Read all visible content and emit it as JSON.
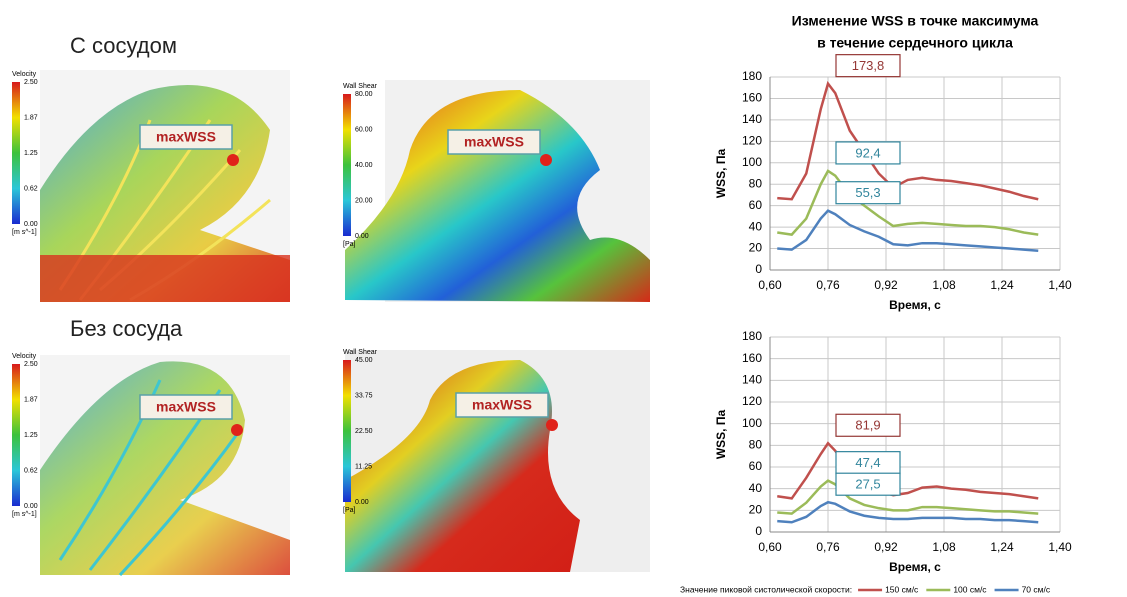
{
  "row_titles": [
    "С сосудом",
    "Без сосуда"
  ],
  "panels": [
    {
      "bar_title": "Velocity",
      "bar_ticks": [
        "2.50",
        "1.87",
        "1.25",
        "0.62",
        "0.00"
      ],
      "bar_unit": "[m s^-1]",
      "marker": "maxWSS"
    },
    {
      "bar_title": "Wall Shear",
      "bar_ticks": [
        "80.00",
        "60.00",
        "40.00",
        "20.00",
        "0.00"
      ],
      "bar_unit": "[Pa]",
      "marker": "maxWSS"
    },
    {
      "bar_title": "Velocity",
      "bar_ticks": [
        "2.50",
        "1.87",
        "1.25",
        "0.62",
        "0.00"
      ],
      "bar_unit": "[m s^-1]",
      "marker": "maxWSS"
    },
    {
      "bar_title": "Wall Shear",
      "bar_ticks": [
        "45.00",
        "33.75",
        "22.50",
        "11.25",
        "0.00"
      ],
      "bar_unit": "[Pa]",
      "marker": "maxWSS"
    }
  ],
  "chart_data": [
    {
      "type": "line",
      "title": [
        "Изменение WSS в точке максимума",
        "в течение сердечного цикла"
      ],
      "xlabel": "Время, с",
      "ylabel": "WSS, Па",
      "grid": true,
      "legend": "none",
      "x": [
        0.62,
        0.66,
        0.7,
        0.74,
        0.76,
        0.78,
        0.82,
        0.86,
        0.9,
        0.94,
        0.98,
        1.02,
        1.06,
        1.1,
        1.14,
        1.18,
        1.22,
        1.26,
        1.3,
        1.34
      ],
      "xlim": [
        0.6,
        1.4
      ],
      "xticks": [
        {
          "value": 0.6,
          "label": "0,60"
        },
        {
          "value": 0.76,
          "label": "0,76"
        },
        {
          "value": 0.92,
          "label": "0,92"
        },
        {
          "value": 1.08,
          "label": "1,08"
        },
        {
          "value": 1.24,
          "label": "1,24"
        },
        {
          "value": 1.4,
          "label": "1,40"
        }
      ],
      "ylim": [
        0,
        180
      ],
      "yticks": [
        0,
        20,
        40,
        60,
        80,
        100,
        120,
        140,
        160,
        180
      ],
      "series": [
        {
          "name": "150 см/с",
          "color": "#c0504d",
          "label_color": "#953735",
          "values": [
            67,
            66,
            90,
            150,
            173.8,
            165,
            130,
            110,
            90,
            77,
            84,
            86,
            84,
            83,
            81,
            79,
            76,
            73,
            69,
            66
          ],
          "value_labels": [
            null,
            null,
            null,
            null,
            "173,8",
            null,
            null,
            null,
            null,
            null,
            null,
            null,
            null,
            null,
            null,
            null,
            null,
            null,
            null,
            null
          ]
        },
        {
          "name": "100 см/с",
          "color": "#9bbb59",
          "label_color": "#31859c",
          "values": [
            35,
            33,
            48,
            80,
            92.4,
            88,
            70,
            60,
            50,
            41,
            43,
            44,
            43,
            42,
            41,
            41,
            40,
            38,
            35,
            33
          ],
          "value_labels": [
            null,
            null,
            null,
            null,
            "92,4",
            null,
            null,
            null,
            null,
            null,
            null,
            null,
            null,
            null,
            null,
            null,
            null,
            null,
            null,
            null
          ]
        },
        {
          "name": "70 см/с",
          "color": "#4f81bd",
          "label_color": "#31859c",
          "values": [
            20,
            19,
            28,
            48,
            55.3,
            52,
            42,
            36,
            31,
            24,
            23,
            25,
            25,
            24,
            23,
            22,
            21,
            20,
            19,
            18
          ],
          "value_labels": [
            null,
            null,
            null,
            null,
            "55,3",
            null,
            null,
            null,
            null,
            null,
            null,
            null,
            null,
            null,
            null,
            null,
            null,
            null,
            null,
            null
          ]
        }
      ]
    },
    {
      "type": "line",
      "xlabel": "Время, с",
      "ylabel": "WSS, Па",
      "grid": true,
      "legend": "bottom",
      "legend_title": "Значение пиковой систолической скорости:",
      "x": [
        0.62,
        0.66,
        0.7,
        0.74,
        0.76,
        0.78,
        0.82,
        0.86,
        0.9,
        0.94,
        0.98,
        1.02,
        1.06,
        1.1,
        1.14,
        1.18,
        1.22,
        1.26,
        1.3,
        1.34
      ],
      "xlim": [
        0.6,
        1.4
      ],
      "xticks": [
        {
          "value": 0.6,
          "label": "0,60"
        },
        {
          "value": 0.76,
          "label": "0,76"
        },
        {
          "value": 0.92,
          "label": "0,92"
        },
        {
          "value": 1.08,
          "label": "1,08"
        },
        {
          "value": 1.24,
          "label": "1,24"
        },
        {
          "value": 1.4,
          "label": "1,40"
        }
      ],
      "ylim": [
        0,
        180
      ],
      "yticks": [
        0,
        20,
        40,
        60,
        80,
        100,
        120,
        140,
        160,
        180
      ],
      "series": [
        {
          "name": "150 см/с",
          "color": "#c0504d",
          "label_color": "#953735",
          "values": [
            33,
            31,
            50,
            72,
            81.9,
            75,
            56,
            45,
            38,
            34,
            36,
            41,
            42,
            40,
            39,
            37,
            36,
            35,
            33,
            31
          ],
          "value_labels": [
            null,
            null,
            null,
            null,
            "81,9",
            null,
            null,
            null,
            null,
            null,
            null,
            null,
            null,
            null,
            null,
            null,
            null,
            null,
            null,
            null
          ]
        },
        {
          "name": "100 см/с",
          "color": "#9bbb59",
          "label_color": "#31859c",
          "values": [
            18,
            17,
            27,
            42,
            47.4,
            44,
            31,
            25,
            22,
            20,
            20,
            23,
            23,
            22,
            21,
            20,
            19,
            19,
            18,
            17
          ],
          "value_labels": [
            null,
            null,
            null,
            null,
            "47,4",
            null,
            null,
            null,
            null,
            null,
            null,
            null,
            null,
            null,
            null,
            null,
            null,
            null,
            null,
            null
          ]
        },
        {
          "name": "70 см/с",
          "color": "#4f81bd",
          "label_color": "#31859c",
          "values": [
            10,
            9,
            14,
            24,
            27.5,
            26,
            19,
            15,
            13,
            12,
            12,
            13,
            13,
            13,
            12,
            12,
            11,
            11,
            10,
            9
          ],
          "value_labels": [
            null,
            null,
            null,
            null,
            "27,5",
            null,
            null,
            null,
            null,
            null,
            null,
            null,
            null,
            null,
            null,
            null,
            null,
            null,
            null,
            null
          ]
        }
      ]
    }
  ]
}
